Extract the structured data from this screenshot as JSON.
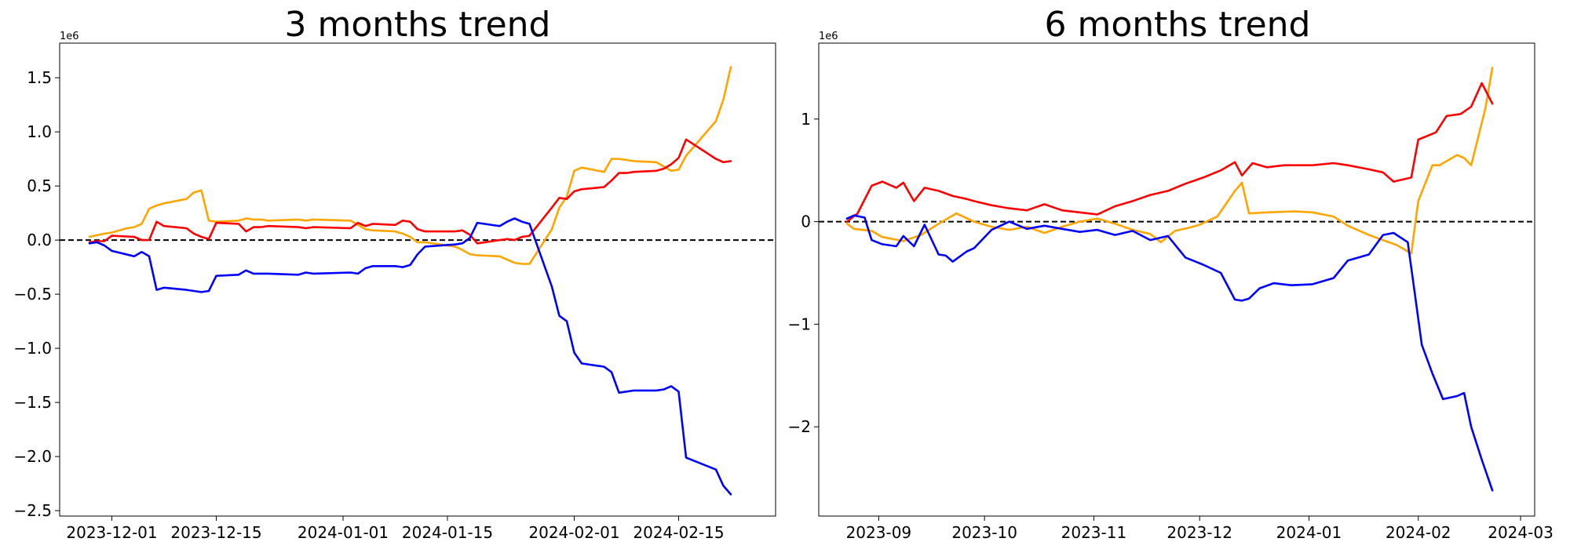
{
  "chart_data": [
    {
      "type": "line",
      "title": "3 months trend",
      "xlabel": "",
      "ylabel": "",
      "y_offset_label": "1e6",
      "x_type": "date",
      "xlim": [
        "2023-11-24",
        "2024-02-28"
      ],
      "ylim": [
        -2.55,
        1.82
      ],
      "x_ticks": [
        "2023-12-01",
        "2023-12-15",
        "2024-01-01",
        "2024-01-15",
        "2024-02-01",
        "2024-02-15"
      ],
      "y_ticks": [
        1.5,
        1.0,
        0.5,
        0.0,
        -0.5,
        -1.0,
        -1.5,
        -2.0,
        -2.5
      ],
      "y_tick_labels": [
        "1.5",
        "1.0",
        "0.5",
        "0.0",
        "−0.5",
        "−1.0",
        "−1.5",
        "−2.0",
        "−2.5"
      ],
      "grid": false,
      "reference_line": {
        "y": 0,
        "style": "dashed",
        "color": "#000000"
      },
      "series": [
        {
          "color": "#ffa500",
          "x": [
            "2023-11-28",
            "2023-11-30",
            "2023-12-01",
            "2023-12-03",
            "2023-12-04",
            "2023-12-05",
            "2023-12-06",
            "2023-12-07",
            "2023-12-08",
            "2023-12-11",
            "2023-12-12",
            "2023-12-13",
            "2023-12-14",
            "2023-12-15",
            "2023-12-18",
            "2023-12-19",
            "2023-12-20",
            "2023-12-21",
            "2023-12-22",
            "2023-12-26",
            "2023-12-27",
            "2023-12-28",
            "2024-01-02",
            "2024-01-03",
            "2024-01-04",
            "2024-01-05",
            "2024-01-08",
            "2024-01-09",
            "2024-01-10",
            "2024-01-11",
            "2024-01-12",
            "2024-01-16",
            "2024-01-17",
            "2024-01-18",
            "2024-01-19",
            "2024-01-22",
            "2024-01-23",
            "2024-01-24",
            "2024-01-25",
            "2024-01-26",
            "2024-01-29",
            "2024-01-30",
            "2024-01-31",
            "2024-02-01",
            "2024-02-02",
            "2024-02-05",
            "2024-02-06",
            "2024-02-07",
            "2024-02-08",
            "2024-02-09",
            "2024-02-12",
            "2024-02-13",
            "2024-02-14",
            "2024-02-15",
            "2024-02-16",
            "2024-02-20",
            "2024-02-21",
            "2024-02-22"
          ],
          "values": [
            0.03,
            0.06,
            0.07,
            0.11,
            0.12,
            0.15,
            0.29,
            0.32,
            0.34,
            0.38,
            0.44,
            0.46,
            0.18,
            0.17,
            0.18,
            0.2,
            0.19,
            0.19,
            0.18,
            0.19,
            0.18,
            0.19,
            0.18,
            0.14,
            0.1,
            0.09,
            0.08,
            0.06,
            0.03,
            -0.02,
            -0.02,
            -0.06,
            -0.09,
            -0.13,
            -0.14,
            -0.15,
            -0.18,
            -0.21,
            -0.22,
            -0.22,
            0.1,
            0.3,
            0.4,
            0.64,
            0.67,
            0.63,
            0.75,
            0.75,
            0.74,
            0.73,
            0.72,
            0.68,
            0.64,
            0.65,
            0.78,
            1.1,
            1.3,
            1.6
          ]
        },
        {
          "color": "#ff0000",
          "x": [
            "2023-11-28",
            "2023-11-29",
            "2023-11-30",
            "2023-12-01",
            "2023-12-04",
            "2023-12-05",
            "2023-12-06",
            "2023-12-07",
            "2023-12-08",
            "2023-12-11",
            "2023-12-12",
            "2023-12-13",
            "2023-12-14",
            "2023-12-15",
            "2023-12-18",
            "2023-12-19",
            "2023-12-20",
            "2023-12-21",
            "2023-12-22",
            "2023-12-26",
            "2023-12-27",
            "2023-12-28",
            "2024-01-02",
            "2024-01-03",
            "2024-01-04",
            "2024-01-05",
            "2024-01-08",
            "2024-01-09",
            "2024-01-10",
            "2024-01-11",
            "2024-01-12",
            "2024-01-16",
            "2024-01-17",
            "2024-01-18",
            "2024-01-19",
            "2024-01-22",
            "2024-01-23",
            "2024-01-24",
            "2024-01-25",
            "2024-01-26",
            "2024-01-29",
            "2024-01-30",
            "2024-01-31",
            "2024-02-01",
            "2024-02-02",
            "2024-02-05",
            "2024-02-06",
            "2024-02-07",
            "2024-02-08",
            "2024-02-09",
            "2024-02-12",
            "2024-02-13",
            "2024-02-14",
            "2024-02-15",
            "2024-02-16",
            "2024-02-20",
            "2024-02-21",
            "2024-02-22"
          ],
          "values": [
            -0.02,
            -0.01,
            -0.01,
            0.04,
            0.03,
            0.0,
            0.0,
            0.17,
            0.13,
            0.11,
            0.06,
            0.03,
            0.01,
            0.16,
            0.15,
            0.08,
            0.12,
            0.12,
            0.13,
            0.12,
            0.11,
            0.12,
            0.11,
            0.16,
            0.13,
            0.15,
            0.14,
            0.18,
            0.17,
            0.1,
            0.08,
            0.08,
            0.09,
            0.05,
            -0.03,
            0.0,
            0.01,
            0.0,
            0.03,
            0.04,
            0.3,
            0.39,
            0.38,
            0.45,
            0.47,
            0.49,
            0.55,
            0.62,
            0.62,
            0.63,
            0.64,
            0.66,
            0.7,
            0.76,
            0.93,
            0.75,
            0.72,
            0.73
          ]
        },
        {
          "color": "#0000ff",
          "x": [
            "2023-11-28",
            "2023-11-29",
            "2023-11-30",
            "2023-12-01",
            "2023-12-04",
            "2023-12-05",
            "2023-12-06",
            "2023-12-07",
            "2023-12-08",
            "2023-12-11",
            "2023-12-12",
            "2023-12-13",
            "2023-12-14",
            "2023-12-15",
            "2023-12-18",
            "2023-12-19",
            "2023-12-20",
            "2023-12-21",
            "2023-12-22",
            "2023-12-26",
            "2023-12-27",
            "2023-12-28",
            "2024-01-02",
            "2024-01-03",
            "2024-01-04",
            "2024-01-05",
            "2024-01-08",
            "2024-01-09",
            "2024-01-10",
            "2024-01-11",
            "2024-01-12",
            "2024-01-16",
            "2024-01-17",
            "2024-01-18",
            "2024-01-19",
            "2024-01-22",
            "2024-01-23",
            "2024-01-24",
            "2024-01-25",
            "2024-01-26",
            "2024-01-29",
            "2024-01-30",
            "2024-01-31",
            "2024-02-01",
            "2024-02-02",
            "2024-02-05",
            "2024-02-06",
            "2024-02-07",
            "2024-02-08",
            "2024-02-09",
            "2024-02-12",
            "2024-02-13",
            "2024-02-14",
            "2024-02-15",
            "2024-02-16",
            "2024-02-20",
            "2024-02-21",
            "2024-02-22"
          ],
          "values": [
            -0.03,
            -0.02,
            -0.05,
            -0.1,
            -0.15,
            -0.11,
            -0.15,
            -0.46,
            -0.44,
            -0.46,
            -0.47,
            -0.48,
            -0.47,
            -0.33,
            -0.32,
            -0.28,
            -0.31,
            -0.31,
            -0.31,
            -0.32,
            -0.3,
            -0.31,
            -0.3,
            -0.31,
            -0.26,
            -0.24,
            -0.24,
            -0.25,
            -0.23,
            -0.13,
            -0.06,
            -0.04,
            -0.03,
            0.02,
            0.16,
            0.13,
            0.17,
            0.2,
            0.17,
            0.15,
            -0.43,
            -0.7,
            -0.75,
            -1.04,
            -1.14,
            -1.17,
            -1.22,
            -1.41,
            -1.4,
            -1.39,
            -1.39,
            -1.38,
            -1.35,
            -1.4,
            -2.01,
            -2.12,
            -2.27,
            -2.35
          ]
        }
      ]
    },
    {
      "type": "line",
      "title": "6 months trend",
      "xlabel": "",
      "ylabel": "",
      "y_offset_label": "1e6",
      "x_type": "date",
      "xlim": [
        "2023-08-15",
        "2024-03-05"
      ],
      "ylim": [
        -2.87,
        1.74
      ],
      "x_ticks": [
        "2023-09-01",
        "2023-10-01",
        "2023-11-01",
        "2023-12-01",
        "2024-01-01",
        "2024-02-01",
        "2024-03-01"
      ],
      "x_tick_labels": [
        "2023-09",
        "2023-10",
        "2023-11",
        "2023-12",
        "2024-01",
        "2024-02",
        "2024-03"
      ],
      "y_ticks": [
        1,
        0,
        -1,
        -2
      ],
      "y_tick_labels": [
        "1",
        "0",
        "−1",
        "−2"
      ],
      "grid": false,
      "reference_line": {
        "y": 0,
        "style": "dashed",
        "color": "#000000"
      },
      "series": [
        {
          "color": "#ffa500",
          "x": [
            "2023-08-23",
            "2023-08-25",
            "2023-08-30",
            "2023-09-02",
            "2023-09-08",
            "2023-09-13",
            "2023-09-18",
            "2023-09-23",
            "2023-09-28",
            "2023-10-03",
            "2023-10-08",
            "2023-10-13",
            "2023-10-18",
            "2023-10-23",
            "2023-10-28",
            "2023-11-02",
            "2023-11-07",
            "2023-11-12",
            "2023-11-17",
            "2023-11-20",
            "2023-11-24",
            "2023-11-28",
            "2023-12-01",
            "2023-12-06",
            "2023-12-11",
            "2023-12-13",
            "2023-12-15",
            "2023-12-20",
            "2023-12-28",
            "2024-01-02",
            "2024-01-08",
            "2024-01-12",
            "2024-01-18",
            "2024-01-22",
            "2024-01-26",
            "2024-01-30",
            "2024-02-01",
            "2024-02-05",
            "2024-02-07",
            "2024-02-12",
            "2024-02-14",
            "2024-02-16",
            "2024-02-20",
            "2024-02-22"
          ],
          "values": [
            -0.02,
            -0.07,
            -0.09,
            -0.15,
            -0.19,
            -0.13,
            -0.02,
            0.08,
            0.0,
            -0.05,
            -0.08,
            -0.05,
            -0.11,
            -0.05,
            0.0,
            0.03,
            -0.02,
            -0.08,
            -0.12,
            -0.2,
            -0.09,
            -0.06,
            -0.03,
            0.05,
            0.3,
            0.38,
            0.08,
            0.09,
            0.1,
            0.09,
            0.05,
            -0.04,
            -0.13,
            -0.18,
            -0.23,
            -0.31,
            0.2,
            0.55,
            0.55,
            0.65,
            0.62,
            0.55,
            1.1,
            1.5
          ]
        },
        {
          "color": "#ff0000",
          "x": [
            "2023-08-23",
            "2023-08-26",
            "2023-08-30",
            "2023-09-02",
            "2023-09-06",
            "2023-09-08",
            "2023-09-11",
            "2023-09-14",
            "2023-09-18",
            "2023-09-22",
            "2023-09-26",
            "2023-09-28",
            "2023-10-03",
            "2023-10-08",
            "2023-10-13",
            "2023-10-18",
            "2023-10-23",
            "2023-10-28",
            "2023-11-02",
            "2023-11-07",
            "2023-11-12",
            "2023-11-17",
            "2023-11-22",
            "2023-11-27",
            "2023-12-02",
            "2023-12-07",
            "2023-12-11",
            "2023-12-13",
            "2023-12-16",
            "2023-12-20",
            "2023-12-25",
            "2024-01-02",
            "2024-01-08",
            "2024-01-12",
            "2024-01-18",
            "2024-01-22",
            "2024-01-25",
            "2024-01-30",
            "2024-02-01",
            "2024-02-06",
            "2024-02-09",
            "2024-02-13",
            "2024-02-16",
            "2024-02-19",
            "2024-02-22"
          ],
          "values": [
            0.0,
            0.08,
            0.35,
            0.39,
            0.33,
            0.38,
            0.2,
            0.33,
            0.3,
            0.25,
            0.22,
            0.2,
            0.16,
            0.13,
            0.11,
            0.17,
            0.11,
            0.09,
            0.07,
            0.15,
            0.2,
            0.26,
            0.3,
            0.37,
            0.43,
            0.5,
            0.58,
            0.45,
            0.57,
            0.53,
            0.55,
            0.55,
            0.57,
            0.55,
            0.51,
            0.48,
            0.39,
            0.43,
            0.8,
            0.87,
            1.03,
            1.05,
            1.12,
            1.35,
            1.15
          ]
        },
        {
          "color": "#0000ff",
          "x": [
            "2023-08-23",
            "2023-08-25",
            "2023-08-28",
            "2023-08-30",
            "2023-09-02",
            "2023-09-06",
            "2023-09-08",
            "2023-09-11",
            "2023-09-14",
            "2023-09-18",
            "2023-09-20",
            "2023-09-22",
            "2023-09-26",
            "2023-09-28",
            "2023-10-03",
            "2023-10-08",
            "2023-10-13",
            "2023-10-18",
            "2023-10-23",
            "2023-10-28",
            "2023-11-02",
            "2023-11-07",
            "2023-11-12",
            "2023-11-17",
            "2023-11-22",
            "2023-11-27",
            "2023-12-02",
            "2023-12-07",
            "2023-12-11",
            "2023-12-13",
            "2023-12-15",
            "2023-12-18",
            "2023-12-22",
            "2023-12-27",
            "2024-01-02",
            "2024-01-08",
            "2024-01-12",
            "2024-01-18",
            "2024-01-22",
            "2024-01-25",
            "2024-01-29",
            "2024-01-31",
            "2024-02-02",
            "2024-02-05",
            "2024-02-08",
            "2024-02-12",
            "2024-02-14",
            "2024-02-16",
            "2024-02-19",
            "2024-02-22"
          ],
          "values": [
            0.03,
            0.06,
            0.04,
            -0.18,
            -0.22,
            -0.24,
            -0.14,
            -0.24,
            -0.03,
            -0.32,
            -0.33,
            -0.39,
            -0.29,
            -0.26,
            -0.08,
            0.0,
            -0.07,
            -0.04,
            -0.07,
            -0.1,
            -0.08,
            -0.13,
            -0.09,
            -0.18,
            -0.14,
            -0.35,
            -0.42,
            -0.5,
            -0.76,
            -0.77,
            -0.75,
            -0.65,
            -0.6,
            -0.62,
            -0.61,
            -0.55,
            -0.38,
            -0.32,
            -0.13,
            -0.11,
            -0.2,
            -0.7,
            -1.2,
            -1.48,
            -1.73,
            -1.7,
            -1.67,
            -2.0,
            -2.32,
            -2.62
          ]
        }
      ]
    }
  ]
}
